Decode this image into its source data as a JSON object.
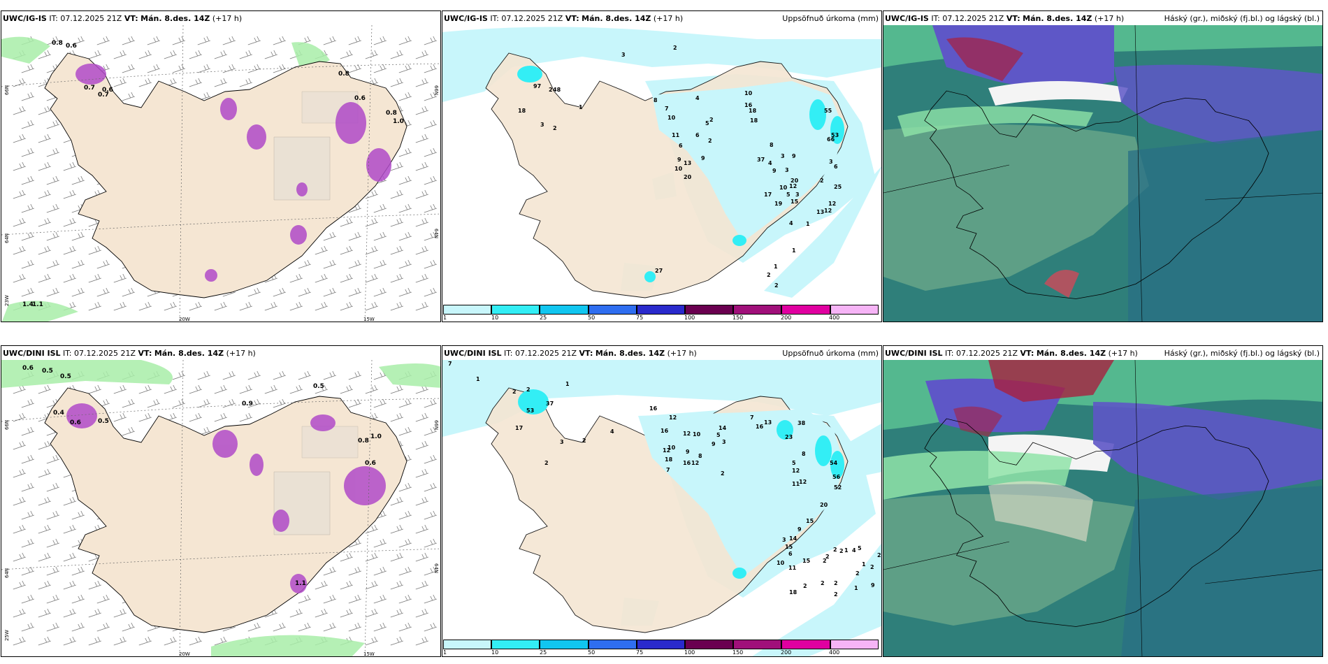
{
  "panels": [
    {
      "model": "UWC/IG-IS",
      "it_label": "IT:",
      "it_value": "07.12.2025 21Z",
      "vt_label": "VT:",
      "vt_value": "Mán. 8.des. 14Z",
      "lead": "(+17 h)",
      "right_title": "",
      "lat_labels": [
        "66N",
        "64N",
        "23W"
      ],
      "lat_labels_right": [
        "66N",
        "64N"
      ],
      "lon_labels": [
        "20W",
        "15W"
      ],
      "point_values": [
        "0.8",
        "0.6",
        "0.7",
        "0.7",
        "0.6",
        "0.8",
        "0.6",
        "0.8",
        "1.0",
        "1.4",
        "1.1"
      ]
    },
    {
      "model": "UWC/IG-IS",
      "it_label": "IT:",
      "it_value": "07.12.2025 21Z",
      "vt_label": "VT:",
      "vt_value": "Mán. 8.des. 14Z",
      "lead": "(+17 h)",
      "right_title": "Uppsöfnuð úrkoma (mm)",
      "point_values": [
        "3",
        "2",
        "97",
        "48",
        "18",
        "2",
        "2",
        "1",
        "3",
        "8",
        "7",
        "10",
        "11",
        "6",
        "9",
        "10",
        "13",
        "20",
        "6",
        "9",
        "4",
        "5",
        "2",
        "2",
        "10",
        "16",
        "18",
        "18",
        "37",
        "55",
        "66",
        "53",
        "8",
        "4",
        "17",
        "9",
        "10",
        "19",
        "4",
        "5",
        "3",
        "2",
        "6",
        "3",
        "25",
        "12",
        "12",
        "13",
        "9",
        "3",
        "20",
        "3",
        "12",
        "15",
        "1",
        "1",
        "1",
        "2",
        "2",
        "27"
      ]
    },
    {
      "model": "UWC/IG-IS",
      "it_label": "IT:",
      "it_value": "07.12.2025 21Z",
      "vt_label": "VT:",
      "vt_value": "Mán. 8.des. 14Z",
      "lead": "(+17 h)",
      "right_title": "Háský (gr.), miðský (fj.bl.) og lágský (bl.)"
    },
    {
      "model": "UWC/DINI ISL",
      "it_label": "IT:",
      "it_value": "07.12.2025 21Z",
      "vt_label": "VT:",
      "vt_value": "Mán. 8.des. 14Z",
      "lead": "(+17 h)",
      "right_title": "",
      "lat_labels": [
        "66N",
        "64N",
        "25W"
      ],
      "lat_labels_right": [
        "66N",
        "64N"
      ],
      "lon_labels": [
        "20W",
        "15W"
      ],
      "point_values": [
        "0.6",
        "0.5",
        "0.5",
        "0.4",
        "0.6",
        "0.5",
        "0.5",
        "1.0",
        "0.8",
        "0.6",
        "0.9",
        "1.1"
      ]
    },
    {
      "model": "UWC/DINI ISL",
      "it_label": "IT:",
      "it_value": "07.12.2025 21Z",
      "vt_label": "VT:",
      "vt_value": "Mán. 8.des. 14Z",
      "lead": "(+17 h)",
      "right_title": "Uppsöfnuð úrkoma (mm)",
      "point_values": [
        "7",
        "1",
        "2",
        "2",
        "1",
        "53",
        "37",
        "17",
        "2",
        "3",
        "2",
        "4",
        "16",
        "16",
        "12",
        "12",
        "10",
        "14",
        "12",
        "18",
        "7",
        "10",
        "9",
        "16",
        "12",
        "8",
        "9",
        "5",
        "3",
        "2",
        "7",
        "16",
        "13",
        "23",
        "38",
        "5",
        "12",
        "11",
        "8",
        "54",
        "56",
        "52",
        "12",
        "20",
        "15",
        "9",
        "14",
        "3",
        "15",
        "6",
        "10",
        "11",
        "15",
        "18",
        "2",
        "2",
        "2",
        "1",
        "1",
        "2",
        "2",
        "2",
        "2",
        "1",
        "4",
        "5",
        "2",
        "2",
        "2",
        "2",
        "9"
      ]
    },
    {
      "model": "UWC/DINI ISL",
      "it_label": "IT:",
      "it_value": "07.12.2025 21Z",
      "vt_label": "VT:",
      "vt_value": "Mán. 8.des. 14Z",
      "lead": "(+17 h)",
      "right_title": "Háský (gr.), miðský (fj.bl.) og lágský (bl.)"
    }
  ],
  "precip_legend": {
    "colors": [
      "#c8f6fb",
      "#33eef5",
      "#11c6f0",
      "#2f6ef0",
      "#2a2acc",
      "#6a0050",
      "#a0107a",
      "#e000a0",
      "#f6b4f6"
    ],
    "ticks": [
      "1",
      "10",
      "25",
      "50",
      "75",
      "100",
      "150",
      "200",
      "400"
    ]
  },
  "colors": {
    "land": "#f5e6d3",
    "wind_land": "#e9d8c4",
    "snow_magenta": "#b04ac8",
    "light_green": "#a8eda8",
    "precip_light": "#c8f6fb",
    "precip_cyan": "#33eef5",
    "cloud_teal": "#2f7f7a",
    "cloud_green": "#54b88f",
    "cloud_purple": "#5e57c7",
    "cloud_red": "#a8203f",
    "cloud_white": "#f4f4f4"
  }
}
